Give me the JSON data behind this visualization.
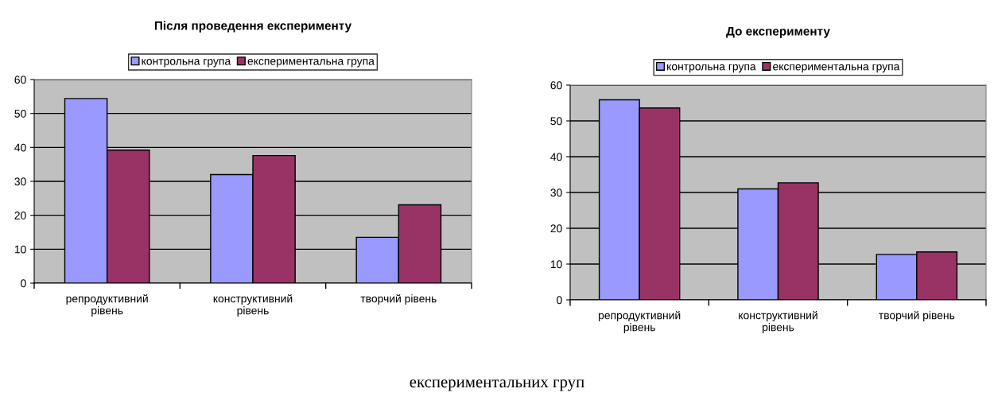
{
  "chart_data": [
    {
      "type": "bar",
      "title": "Після проведення експерименту",
      "categories": [
        "репродуктивний\nрівень",
        "конструктивний\nрівень",
        "творчий рівень"
      ],
      "series": [
        {
          "name": "контрольна група",
          "color": "#9999ff",
          "values": [
            54.4,
            32.0,
            13.5
          ]
        },
        {
          "name": "експериментальна група",
          "color": "#993366",
          "values": [
            39.2,
            37.6,
            23.1
          ]
        }
      ],
      "ylim": [
        0,
        60
      ],
      "yticks": [
        0,
        10,
        20,
        30,
        40,
        50,
        60
      ],
      "grid": "y",
      "legend": "top"
    },
    {
      "type": "bar",
      "title": "До експерименту",
      "categories": [
        "репродуктивний\nрівень",
        "конструктивний\nрівень",
        "творчий рівень"
      ],
      "series": [
        {
          "name": "контрольна група",
          "color": "#9999ff",
          "values": [
            55.9,
            31.0,
            12.7
          ]
        },
        {
          "name": "експериментальна група",
          "color": "#993366",
          "values": [
            53.6,
            32.7,
            13.4
          ]
        }
      ],
      "ylim": [
        0,
        60
      ],
      "yticks": [
        0,
        10,
        20,
        30,
        40,
        50,
        60
      ],
      "grid": "y",
      "legend": "top",
      "annotations": [
        "експериментальних груп"
      ]
    }
  ]
}
